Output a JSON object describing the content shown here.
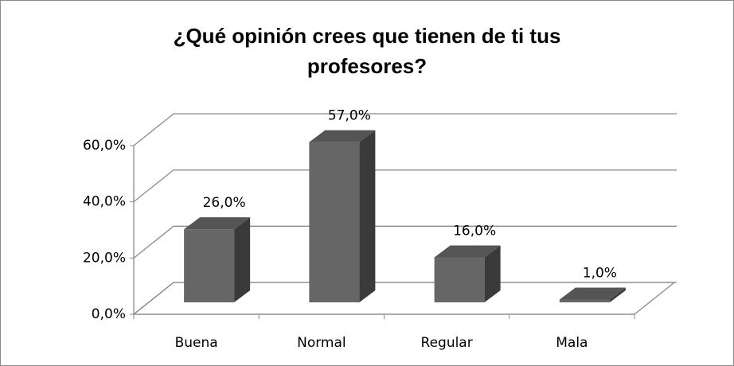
{
  "chart_data": {
    "type": "bar3d",
    "title": "¿Qué opinión crees que tienen de ti tus profesores?",
    "categories": [
      "Buena",
      "Normal",
      "Regular",
      "Mala"
    ],
    "values": [
      26,
      57,
      16,
      1
    ],
    "value_labels": [
      "26,0%",
      "57,0%",
      "16,0%",
      "1,0%"
    ],
    "color": "#666666",
    "ylim": [
      0,
      60
    ],
    "yticks": [
      {
        "value": 0,
        "label": "0,0%"
      },
      {
        "value": 20,
        "label": "20,0%"
      },
      {
        "value": 40,
        "label": "40,0%"
      },
      {
        "value": 60,
        "label": "60,0%"
      }
    ],
    "grid": true
  }
}
